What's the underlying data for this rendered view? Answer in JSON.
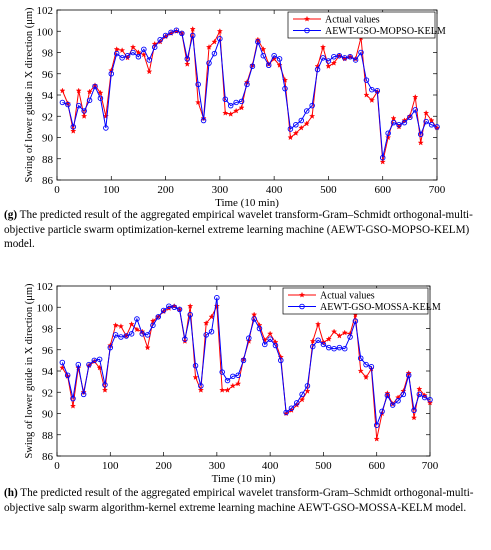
{
  "chart_data": [
    {
      "type": "line",
      "title": "",
      "xlabel": "Time (10 min)",
      "ylabel": "Swing of lower guide in X direction (μm)",
      "xlim": [
        0,
        700
      ],
      "ylim": [
        86,
        102
      ],
      "xticks": [
        0,
        100,
        200,
        300,
        400,
        500,
        600,
        700
      ],
      "yticks": [
        86,
        88,
        90,
        92,
        94,
        96,
        98,
        100,
        102
      ],
      "grid": false,
      "legend_position": "top-right",
      "series": [
        {
          "name": "Actual values",
          "color": "#ff0000",
          "marker": "star",
          "x": [
            10,
            20,
            30,
            40,
            50,
            60,
            70,
            80,
            90,
            100,
            110,
            120,
            130,
            140,
            150,
            160,
            170,
            180,
            190,
            200,
            210,
            220,
            230,
            240,
            250,
            260,
            270,
            280,
            290,
            300,
            310,
            320,
            330,
            340,
            350,
            360,
            370,
            380,
            390,
            400,
            410,
            420,
            430,
            440,
            450,
            460,
            470,
            480,
            490,
            500,
            510,
            520,
            530,
            540,
            550,
            560,
            570,
            580,
            590,
            600,
            610,
            620,
            630,
            640,
            650,
            660,
            670,
            680,
            690,
            700
          ],
          "y": [
            94.4,
            93.2,
            90.6,
            94.4,
            92.0,
            94.3,
            94.9,
            94.2,
            92.0,
            96.3,
            98.3,
            98.2,
            97.5,
            98.5,
            98.0,
            97.8,
            96.2,
            98.8,
            99.0,
            99.5,
            99.8,
            100.0,
            99.8,
            96.9,
            100.2,
            93.3,
            91.8,
            98.5,
            99.0,
            100.0,
            92.3,
            92.2,
            92.5,
            92.8,
            95.2,
            96.8,
            99.2,
            98.3,
            96.9,
            97.4,
            96.8,
            95.4,
            90.0,
            90.4,
            90.9,
            91.3,
            92.0,
            96.7,
            98.5,
            96.7,
            97.0,
            97.7,
            97.4,
            97.6,
            97.4,
            99.4,
            94.0,
            93.5,
            94.3,
            87.7,
            90.0,
            91.8,
            91.0,
            91.6,
            92.0,
            93.8,
            89.5,
            92.3,
            91.6,
            90.9
          ]
        },
        {
          "name": "AEWT-GSO-MOPSO-KELM",
          "color": "#0000ff",
          "marker": "circle",
          "x": [
            10,
            20,
            30,
            40,
            50,
            60,
            70,
            80,
            90,
            100,
            110,
            120,
            130,
            140,
            150,
            160,
            170,
            180,
            190,
            200,
            210,
            220,
            230,
            240,
            250,
            260,
            270,
            280,
            290,
            300,
            310,
            320,
            330,
            340,
            350,
            360,
            370,
            380,
            390,
            400,
            410,
            420,
            430,
            440,
            450,
            460,
            470,
            480,
            490,
            500,
            510,
            520,
            530,
            540,
            550,
            560,
            570,
            580,
            590,
            600,
            610,
            620,
            630,
            640,
            650,
            660,
            670,
            680,
            690,
            700
          ],
          "y": [
            93.3,
            93.1,
            91.0,
            93.0,
            92.5,
            93.5,
            94.8,
            93.7,
            90.9,
            96.0,
            97.9,
            97.5,
            97.7,
            98.0,
            97.6,
            98.3,
            97.3,
            98.5,
            99.2,
            99.6,
            99.9,
            100.1,
            99.8,
            97.4,
            99.6,
            95.0,
            91.6,
            97.0,
            97.9,
            99.3,
            93.6,
            93.0,
            93.3,
            93.4,
            95.0,
            96.7,
            99.0,
            97.7,
            96.8,
            97.7,
            97.4,
            94.6,
            90.8,
            91.2,
            91.6,
            92.5,
            93.0,
            96.4,
            97.5,
            97.2,
            97.6,
            97.7,
            97.5,
            97.6,
            97.3,
            98.0,
            95.4,
            94.5,
            94.4,
            88.1,
            90.4,
            91.4,
            91.2,
            91.4,
            91.9,
            92.6,
            90.3,
            91.5,
            91.2,
            91.0
          ]
        }
      ]
    },
    {
      "type": "line",
      "title": "",
      "xlabel": "Time (10 min)",
      "ylabel": "Swing of lower guide in X direction (μm)",
      "xlim": [
        0,
        700
      ],
      "ylim": [
        86,
        102
      ],
      "xticks": [
        0,
        100,
        200,
        300,
        400,
        500,
        600,
        700
      ],
      "yticks": [
        86,
        88,
        90,
        92,
        94,
        96,
        98,
        100,
        102
      ],
      "grid": false,
      "legend_position": "top-right",
      "series": [
        {
          "name": "Actual values",
          "color": "#ff0000",
          "marker": "star",
          "x": [
            10,
            20,
            30,
            40,
            50,
            60,
            70,
            80,
            90,
            100,
            110,
            120,
            130,
            140,
            150,
            160,
            170,
            180,
            190,
            200,
            210,
            220,
            230,
            240,
            250,
            260,
            270,
            280,
            290,
            300,
            310,
            320,
            330,
            340,
            350,
            360,
            370,
            380,
            390,
            400,
            410,
            420,
            430,
            440,
            450,
            460,
            470,
            480,
            490,
            500,
            510,
            520,
            530,
            540,
            550,
            560,
            570,
            580,
            590,
            600,
            610,
            620,
            630,
            640,
            650,
            660,
            670,
            680,
            690,
            700
          ],
          "y": [
            94.3,
            93.5,
            90.7,
            94.3,
            92.0,
            94.5,
            94.9,
            94.3,
            92.2,
            96.4,
            98.3,
            98.2,
            97.3,
            98.4,
            97.9,
            97.7,
            96.2,
            98.7,
            99.1,
            99.6,
            99.9,
            100.1,
            99.8,
            96.8,
            100.1,
            93.4,
            92.2,
            98.5,
            99.1,
            100.1,
            92.2,
            92.2,
            92.6,
            92.8,
            95.1,
            96.8,
            99.3,
            98.3,
            96.9,
            97.5,
            96.7,
            95.3,
            90.0,
            90.3,
            90.8,
            91.3,
            92.1,
            96.8,
            98.4,
            96.7,
            97.0,
            97.7,
            97.3,
            97.6,
            97.5,
            99.3,
            94.0,
            93.4,
            94.2,
            87.6,
            90.0,
            91.9,
            90.9,
            91.5,
            92.1,
            93.8,
            89.6,
            92.3,
            91.7,
            91.0
          ]
        },
        {
          "name": "AEWT-GSO-MOSSA-KELM",
          "color": "#0000ff",
          "marker": "circle",
          "x": [
            10,
            20,
            30,
            40,
            50,
            60,
            70,
            80,
            90,
            100,
            110,
            120,
            130,
            140,
            150,
            160,
            170,
            180,
            190,
            200,
            210,
            220,
            230,
            240,
            250,
            260,
            270,
            280,
            290,
            300,
            310,
            320,
            330,
            340,
            350,
            360,
            370,
            380,
            390,
            400,
            410,
            420,
            430,
            440,
            450,
            460,
            470,
            480,
            490,
            500,
            510,
            520,
            530,
            540,
            550,
            560,
            570,
            580,
            590,
            600,
            610,
            620,
            630,
            640,
            650,
            660,
            670,
            680,
            690,
            700
          ],
          "y": [
            94.8,
            93.6,
            91.4,
            94.6,
            91.8,
            94.6,
            95.0,
            95.1,
            92.7,
            96.2,
            97.4,
            97.2,
            97.3,
            97.5,
            98.9,
            97.5,
            97.4,
            98.3,
            99.1,
            99.7,
            100.1,
            100.0,
            99.8,
            97.0,
            99.3,
            94.5,
            92.6,
            97.4,
            97.7,
            100.9,
            93.9,
            93.1,
            93.5,
            93.6,
            95.0,
            97.1,
            98.9,
            98.0,
            96.5,
            97.0,
            96.4,
            95.0,
            90.1,
            90.5,
            91.0,
            91.8,
            92.6,
            96.3,
            96.9,
            96.5,
            96.2,
            96.1,
            96.2,
            96.1,
            97.2,
            98.7,
            95.2,
            94.6,
            94.4,
            88.9,
            90.2,
            91.7,
            90.8,
            91.2,
            91.8,
            93.6,
            90.3,
            91.8,
            91.5,
            91.3
          ]
        }
      ]
    }
  ],
  "captions": [
    {
      "letter": "(g)",
      "text": " The predicted result of the aggregated empirical wavelet transform-Gram–Schmidt orthogonal-multi-objective particle swarm optimization-kernel extreme learning machine (AEWT-GSO-MOPSO-KELM) model."
    },
    {
      "letter": "(h)",
      "text": " The predicted result of the aggregated empirical wavelet transform-Gram–Schmidt orthogonal-multi-objective salp swarm algorithm-kernel extreme learning machine AEWT-GSO-MOSSA-KELM model."
    }
  ]
}
